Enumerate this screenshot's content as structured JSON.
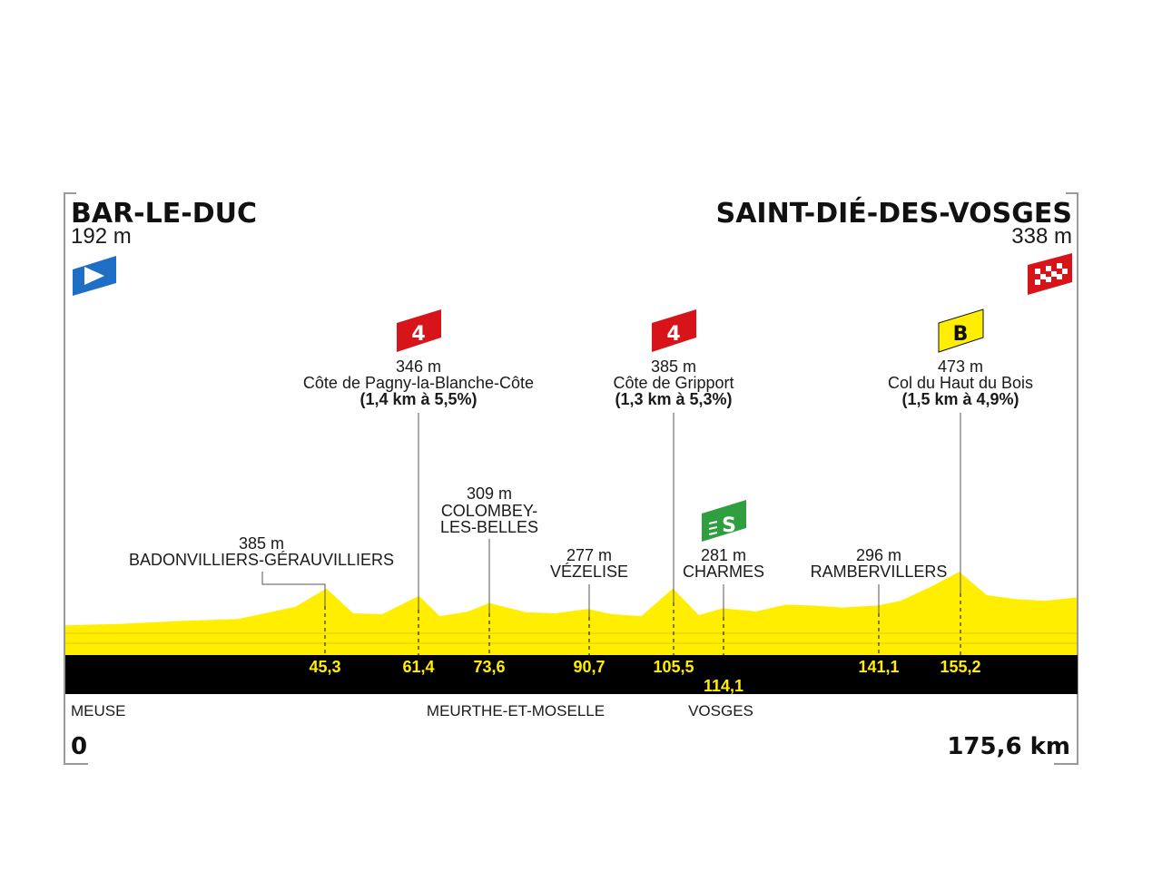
{
  "start": {
    "name": "BAR-LE-DUC",
    "altitude": "192 m"
  },
  "finish": {
    "name": "SAINT-DIÉ-DES-VOSGES",
    "altitude": "338 m"
  },
  "climbs": [
    {
      "category": "4",
      "altitude": "346 m",
      "name": "Côte de Pagny-la-Blanche-Côte",
      "detail": "(1,4 km à 5,5%)",
      "km": "61,4"
    },
    {
      "category": "4",
      "altitude": "385 m",
      "name": "Côte de Gripport",
      "detail": "(1,3 km à 5,3%)",
      "km": "105,5"
    },
    {
      "category": "B",
      "altitude": "473 m",
      "name": "Col du Haut du Bois",
      "detail": "(1,5 km à 4,9%)",
      "km": "155,2"
    }
  ],
  "sprint": {
    "symbol": "S",
    "altitude": "281 m",
    "name": "CHARMES",
    "km": "114,1"
  },
  "towns": [
    {
      "altitude": "385 m",
      "name": "BADONVILLIERS-GÉRAUVILLIERS",
      "km": "45,3"
    },
    {
      "altitude": "309 m",
      "name1": "COLOMBEY-",
      "name2": "LES-BELLES",
      "km": "73,6"
    },
    {
      "altitude": "277 m",
      "name": "VÉZELISE",
      "km": "90,7"
    },
    {
      "altitude": "296 m",
      "name": "RAMBERVILLERS",
      "km": "141,1"
    }
  ],
  "departments": [
    "MEUSE",
    "MEURTHE-ET-MOSELLE",
    "VOSGES"
  ],
  "distance_start": "0",
  "distance_total": "175,6 km",
  "colors": {
    "profile": "#ffee00",
    "profile_dark": "#e6d200",
    "band": "#000000",
    "km_text": "#ffee00",
    "cat4": "#d7141a",
    "catB": "#ffee00",
    "sprint": "#2f9e3f",
    "start_flag": "#1d6ec4",
    "finish_flag": "#d7141a"
  },
  "chart_data": {
    "type": "area",
    "xlabel": "",
    "ylabel": "",
    "xlim": [
      0,
      175.6
    ],
    "x_unit": "km",
    "y_unit": "m",
    "series": [
      {
        "x": [
          0,
          10,
          20,
          30,
          40,
          45.3,
          50,
          55,
          61.4,
          65,
          70,
          73.6,
          80,
          85,
          90.7,
          95,
          100,
          105.5,
          110,
          114.1,
          120,
          125,
          130,
          135,
          141.1,
          145,
          150,
          155.2,
          160,
          165,
          170,
          175.6
        ],
        "y": [
          192,
          200,
          215,
          225,
          290,
          385,
          255,
          250,
          346,
          240,
          265,
          309,
          260,
          255,
          277,
          250,
          240,
          385,
          245,
          281,
          265,
          300,
          295,
          285,
          296,
          320,
          390,
          473,
          350,
          330,
          320,
          338
        ]
      }
    ]
  }
}
